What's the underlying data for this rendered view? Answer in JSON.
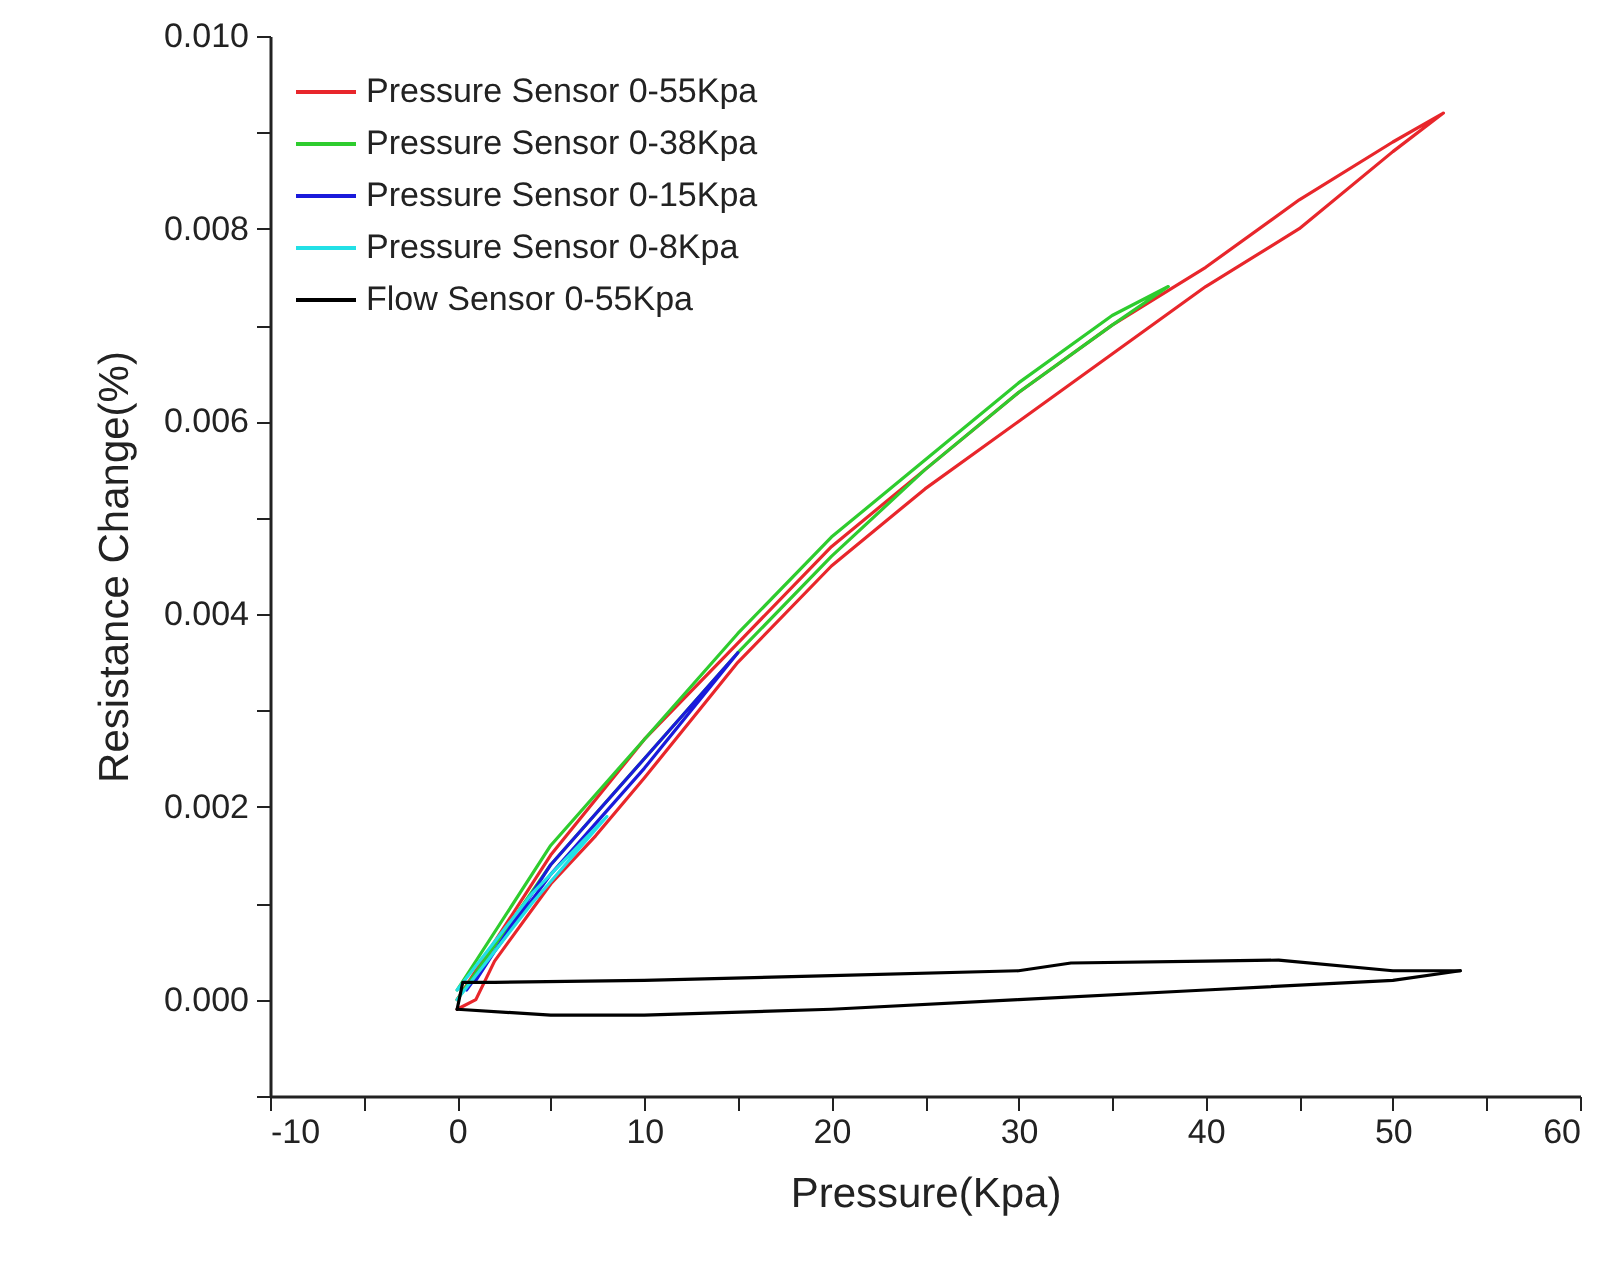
{
  "chart_data": {
    "type": "line",
    "xlabel": "Pressure(Kpa)",
    "ylabel": "Resistance Change(%)",
    "xlim": [
      -10,
      60
    ],
    "xticks": [
      -10,
      {
        "value": -5,
        "label": null
      },
      0,
      {
        "value": 5,
        "label": null
      },
      10,
      {
        "value": 15,
        "label": null
      },
      20,
      {
        "value": 25,
        "label": null
      },
      30,
      {
        "value": 35,
        "label": null
      },
      40,
      {
        "value": 45,
        "label": null
      },
      50,
      {
        "value": 55,
        "label": null
      },
      60
    ],
    "ylim": [
      -0.001,
      0.01
    ],
    "yticks": [
      {
        "value": -0.001,
        "label": null
      },
      {
        "value": 0,
        "label": "0.000"
      },
      {
        "value": 0.001,
        "label": null
      },
      {
        "value": 0.002,
        "label": "0.002"
      },
      {
        "value": 0.003,
        "label": null
      },
      {
        "value": 0.004,
        "label": "0.004"
      },
      {
        "value": 0.005,
        "label": null
      },
      {
        "value": 0.006,
        "label": "0.006"
      },
      {
        "value": 0.007,
        "label": null
      },
      {
        "value": 0.008,
        "label": "0.008"
      },
      {
        "value": 0.009,
        "label": null
      },
      {
        "value": 0.01,
        "label": "0.010"
      }
    ],
    "legend": "top left",
    "grid": false,
    "series": [
      {
        "name": "Pressure Sensor 0-55Kpa",
        "color": "#e8262b",
        "x": [
          0,
          1,
          2,
          5,
          7.4,
          10,
          15,
          20,
          25,
          30,
          35,
          40,
          45,
          50,
          52.7,
          50,
          45,
          40,
          35,
          30,
          25,
          20,
          15,
          10,
          5,
          2,
          0
        ],
        "values": [
          -0.0001,
          0.0,
          0.0004,
          0.0012,
          0.0017,
          0.0023,
          0.0035,
          0.0045,
          0.0053,
          0.006,
          0.0067,
          0.0074,
          0.008,
          0.0088,
          0.0092,
          0.0089,
          0.0083,
          0.0076,
          0.007,
          0.0063,
          0.0055,
          0.0047,
          0.0037,
          0.0027,
          0.0015,
          0.0006,
          0.0
        ]
      },
      {
        "name": "Pressure Sensor 0-38Kpa",
        "color": "#2ecc2e",
        "x": [
          0,
          5,
          10,
          15,
          20,
          25,
          30,
          35,
          38,
          35,
          30,
          25,
          20,
          15,
          10,
          5,
          0
        ],
        "values": [
          0.0,
          0.0014,
          0.0025,
          0.0036,
          0.0046,
          0.0055,
          0.0063,
          0.007,
          0.0074,
          0.0071,
          0.0064,
          0.0056,
          0.0048,
          0.0038,
          0.0027,
          0.0016,
          0.0001
        ]
      },
      {
        "name": "Pressure Sensor 0-15Kpa",
        "color": "#1a1adb",
        "x": [
          0.5,
          5,
          10,
          15,
          10,
          5,
          1
        ],
        "values": [
          0.0001,
          0.0013,
          0.0024,
          0.0036,
          0.0025,
          0.0014,
          0.0002
        ]
      },
      {
        "name": "Pressure Sensor 0-8Kpa",
        "color": "#22e0e6",
        "x": [
          0,
          4,
          8,
          4,
          0
        ],
        "values": [
          0.0,
          0.001,
          0.0019,
          0.0011,
          0.0001
        ]
      },
      {
        "name": "Flow Sensor 0-55Kpa",
        "color": "#000000",
        "x": [
          0,
          5,
          10,
          20,
          30,
          40,
          50,
          53.6
        ],
        "values": [
          -0.0001,
          -0.00016,
          -0.00016,
          -0.0001,
          0.0,
          0.0001,
          0.0002,
          0.0003
        ]
      },
      {
        "color": "#000000",
        "x": [
          53.6,
          50,
          43.9,
          40,
          32.8,
          30,
          20,
          10,
          2,
          0.3,
          0
        ],
        "values": [
          0.0003,
          0.0003,
          0.00041,
          0.0004,
          0.00038,
          0.0003,
          0.00025,
          0.0002,
          0.00018,
          0.00018,
          -0.0001
        ]
      }
    ]
  }
}
